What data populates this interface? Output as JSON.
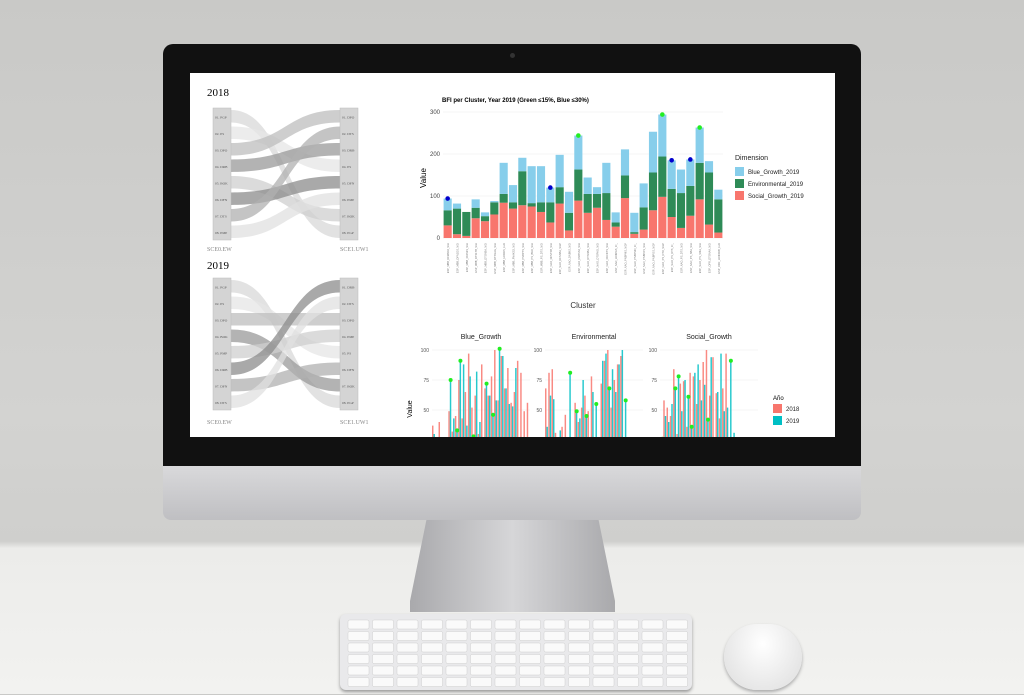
{
  "sankeys": [
    {
      "title": "2018",
      "left_axis": "SCE0.EW",
      "right_axis": "SCE1.UW1",
      "left_nodes": [
        "01. PGP",
        "02. PS",
        "03. DPO",
        "04. DRB",
        "05. BOK",
        "06. DFN",
        "07. DTS",
        "08. PMP"
      ],
      "right_nodes": [
        "01. DPO",
        "02. DTS",
        "03. DRB",
        "04. PS",
        "05. DFN",
        "06. PMP",
        "07. BOK",
        "08. PGP"
      ]
    },
    {
      "title": "2019",
      "left_axis": "SCE0.EW",
      "right_axis": "SCE1.UW1",
      "left_nodes": [
        "01. PGP",
        "02. PS",
        "03. DPO",
        "04. BOK",
        "05. PMP",
        "06. DRB",
        "07. DFN",
        "08. DTS"
      ],
      "right_nodes": [
        "01. DRB",
        "02. DTS",
        "03. DPO",
        "04. PMP",
        "05. PS",
        "06. DFN",
        "07. BOK",
        "08. PGP"
      ]
    }
  ],
  "chart_data": [
    {
      "type": "bar",
      "stacked": true,
      "title": "BFI per Cluster, Year 2019 (Green ≤15%, Blue ≤30%)",
      "xlabel": "Cluster",
      "ylabel": "Value",
      "ylim": [
        0,
        300
      ],
      "yticks": [
        0,
        100,
        200,
        300
      ],
      "grid": true,
      "legend": {
        "title": "Dimension",
        "placement": "right"
      },
      "categories": [
        "ESP_MBB_DFWK02_NGI",
        "ESP_MBB_DFN1DS_NGI",
        "ESP_MBB_DNIS3S_NGI",
        "ESP_MBB_DTS1TB_NGI",
        "ESP_MBB_DTSNBA_NGI",
        "ESP_MBB_DTSNAG_NGI",
        "ESP_MBB_HOKDS_LLD",
        "ESP_MBB_PNAKS2_NGI",
        "ESP_MBB_PNBPTS_NGI",
        "ESP_MBB_PS_BKO_NGI",
        "ESP_MBB_PS_DTS_NGI",
        "ESP_NAO_DFNTSB_NGI",
        "ESP_NAO_DFNSBA_NGP",
        "ESP_NAO_DNBKS_NGI",
        "ESP_NAO_DNBSS2_NGI",
        "ESP_NAO_DTSNBA_NGI",
        "ESP_NAO_DTSPAO_NGI",
        "ESP_NAO_FRCKTS_NGI",
        "ESP_NAO_HOKPAS_IC_",
        "ESP_NAO_PNBPMS_NGP",
        "ESP_NAO_PNBPMO_IC_",
        "ESP_NAO_PNBPOS_NGI",
        "ESP_NAO_PNBPOS_NGP",
        "ESP_NAO_PS_DTO_NGP",
        "ESP_NAO_PS_DTS_IC_",
        "ESP_NAO_PS_DTS_NGI",
        "ESP_NAO_PS_SBA_NGI",
        "ESP_NAO_PS_SMA_NGI",
        "ESP_OFR_DTSNAA_NGI",
        "ESP_OFR_HOKSDB_LLD"
      ],
      "series": [
        {
          "name": "Social_Growth_2019",
          "color": "#f8766d",
          "values": [
            30,
            9,
            5,
            47,
            40,
            56,
            84,
            70,
            78,
            75,
            62,
            37,
            82,
            18,
            89,
            60,
            72,
            43,
            27,
            95,
            10,
            20,
            66,
            98,
            50,
            24,
            53,
            92,
            32,
            13
          ]
        },
        {
          "name": "Environmental_2019",
          "color": "#2e8b57",
          "values": [
            36,
            61,
            57,
            25,
            12,
            29,
            21,
            15,
            81,
            8,
            23,
            48,
            39,
            42,
            74,
            45,
            33,
            64,
            10,
            54,
            4,
            53,
            90,
            96,
            67,
            83,
            71,
            87,
            124,
            79
          ]
        },
        {
          "name": "Blue_Growth_2019",
          "color": "#87ceeb",
          "values": [
            28,
            12,
            0,
            20,
            9,
            3,
            74,
            41,
            32,
            88,
            86,
            35,
            77,
            50,
            81,
            39,
            16,
            72,
            24,
            62,
            46,
            57,
            97,
            100,
            68,
            56,
            63,
            84,
            27,
            23
          ]
        }
      ],
      "markers": [
        {
          "category_index": 0,
          "color": "#0000cd",
          "meaning": "Blue ≤30%"
        },
        {
          "category_index": 11,
          "color": "#0000cd",
          "meaning": "Blue ≤30%"
        },
        {
          "category_index": 14,
          "color": "#22ee22",
          "meaning": "Green ≤15%"
        },
        {
          "category_index": 23,
          "color": "#22ee22",
          "meaning": "Green ≤15%"
        },
        {
          "category_index": 24,
          "color": "#0000cd",
          "meaning": "Blue ≤30%"
        },
        {
          "category_index": 26,
          "color": "#0000cd",
          "meaning": "Blue ≤30%"
        },
        {
          "category_index": 27,
          "color": "#22ee22",
          "meaning": "Green ≤15%"
        }
      ]
    },
    {
      "type": "bar",
      "grouped": true,
      "facets": [
        "Blue_Growth",
        "Environmental",
        "Social_Growth"
      ],
      "ylabel": "Value",
      "yticks": [
        50,
        75,
        100
      ],
      "ylim_visible": [
        28,
        103
      ],
      "legend": {
        "title": "Año",
        "placement": "right",
        "entries": [
          {
            "name": "2018",
            "color": "#f8766d"
          },
          {
            "name": "2019",
            "color": "#00bfc4"
          }
        ]
      },
      "panels": [
        {
          "name": "Blue_Growth",
          "v2018": [
            37,
            0,
            40,
            0,
            0,
            49,
            32,
            45,
            75,
            43,
            65,
            97,
            52,
            62,
            30,
            88,
            68,
            62,
            78,
            100,
            58,
            95,
            68,
            85,
            56,
            65,
            91,
            81,
            49,
            56
          ],
          "v2019": [
            30,
            0,
            0,
            0,
            0,
            75,
            43,
            33,
            91,
            88,
            37,
            78,
            0,
            82,
            40,
            0,
            72,
            62,
            46,
            58,
            101,
            95,
            68,
            55,
            53,
            85,
            0,
            0,
            0,
            0
          ],
          "highlight2019": [
            5,
            7,
            8,
            12,
            16,
            18,
            20
          ]
        },
        {
          "name": "Environmental",
          "v2018": [
            68,
            81,
            84,
            31,
            0,
            36,
            46,
            0,
            0,
            56,
            40,
            52,
            62,
            49,
            78,
            0,
            0,
            72,
            91,
            100,
            52,
            75,
            88,
            95,
            0,
            0,
            0,
            0,
            0,
            0
          ],
          "v2019": [
            36,
            62,
            59,
            0,
            33,
            0,
            0,
            81,
            0,
            49,
            43,
            75,
            45,
            0,
            65,
            55,
            0,
            91,
            97,
            68,
            84,
            65,
            88,
            100,
            58,
            0,
            0,
            0,
            0,
            0
          ],
          "highlight2019": [
            7,
            9,
            12,
            15,
            19,
            24
          ]
        },
        {
          "name": "Social_Growth",
          "v2018": [
            0,
            58,
            52,
            45,
            84,
            30,
            72,
            74,
            36,
            81,
            78,
            55,
            75,
            90,
            100,
            62,
            94,
            64,
            43,
            68,
            97,
            0,
            0,
            0,
            0,
            0,
            0,
            0,
            0,
            0
          ],
          "v2019": [
            26,
            45,
            40,
            55,
            68,
            78,
            49,
            75,
            61,
            36,
            81,
            88,
            58,
            71,
            42,
            94,
            0,
            65,
            97,
            49,
            52,
            91,
            31,
            0,
            0,
            0,
            0,
            0,
            0,
            0
          ],
          "highlight2019": [
            0,
            4,
            5,
            8,
            9,
            14,
            21
          ]
        }
      ]
    }
  ]
}
